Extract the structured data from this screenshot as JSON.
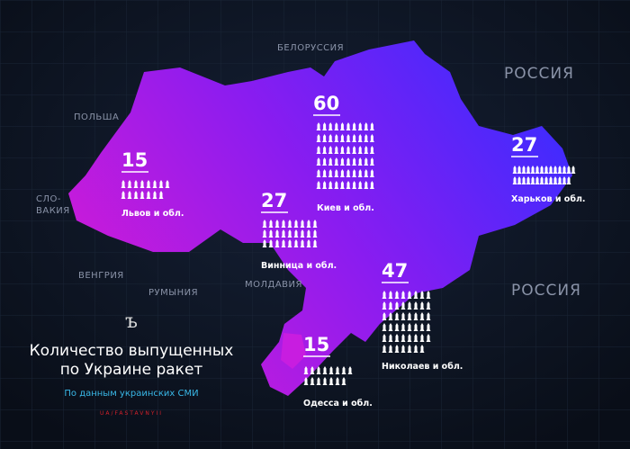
{
  "title_lines": [
    "Количество выпущенных",
    "по Украине ракет"
  ],
  "subtitle": "По данным украинских СМИ",
  "credit": "UA/FASTAVNYII",
  "countries": [
    "БЕЛОРУССИЯ",
    "РОССИЯ",
    "ПОЛЬША",
    "СЛО-",
    "ВАКИЯ",
    "ВЕНГРИЯ",
    "РУМЫНИЯ",
    "МОЛДАВИЯ",
    "РОССИЯ"
  ],
  "regions": [
    {
      "name": "Львов и обл.",
      "value": 15
    },
    {
      "name": "Винница и обл.",
      "value": 27
    },
    {
      "name": "Киев и обл.",
      "value": 60
    },
    {
      "name": "Харьков и обл.",
      "value": 27
    },
    {
      "name": "Николаев и обл.",
      "value": 47
    },
    {
      "name": "Одесса и обл.",
      "value": 15
    }
  ]
}
